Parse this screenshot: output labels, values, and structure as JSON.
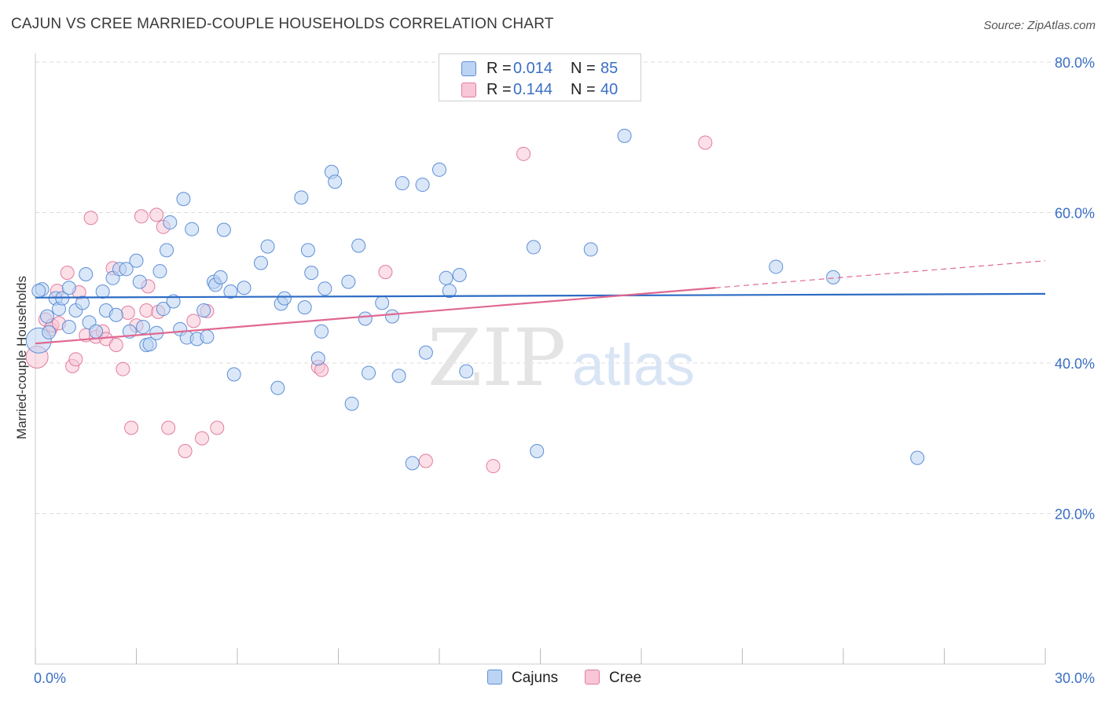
{
  "title": "CAJUN VS CREE MARRIED-COUPLE HOUSEHOLDS CORRELATION CHART",
  "source": "Source: ZipAtlas.com",
  "watermark": {
    "zip": "ZIP",
    "atlas": "atlas"
  },
  "colors": {
    "cajuns_fill": "#bcd4f3",
    "cajuns_stroke": "#5d8fd6",
    "cajuns_line": "#2c6bc4",
    "cree_fill": "#f8c6d6",
    "cree_stroke": "#e27ca0",
    "cree_line": "#e06892",
    "grid": "#dcdcdc",
    "tick_label": "#3a6fc4"
  },
  "legend": {
    "series": [
      {
        "name": "Cajuns",
        "r_label": "R =",
        "r_value": "0.014",
        "n_label": "N =",
        "n_value": "85"
      },
      {
        "name": "Cree",
        "r_label": "R =",
        "r_value": "0.144",
        "n_label": "N =",
        "n_value": "40"
      }
    ]
  },
  "chart_data": {
    "type": "scatter",
    "title": "CAJUN VS CREE MARRIED-COUPLE HOUSEHOLDS CORRELATION CHART",
    "xlabel": "",
    "ylabel": "Married-couple Households",
    "xlim": [
      0,
      30
    ],
    "ylim": [
      0,
      80
    ],
    "x_ticks_labeled": [
      "0.0%",
      "30.0%"
    ],
    "y_ticks": [
      20,
      40,
      60,
      80
    ],
    "y_tick_labels": [
      "20.0%",
      "40.0%",
      "60.0%",
      "80.0%"
    ],
    "grid": true,
    "legend_position": "top-center",
    "series": [
      {
        "name": "Cajuns",
        "R": 0.014,
        "N": 85,
        "trend": {
          "x": [
            0,
            30
          ],
          "y": [
            48.7,
            49.2
          ]
        },
        "points": [
          [
            0.1,
            43.0
          ],
          [
            0.2,
            49.8
          ],
          [
            0.35,
            46.2
          ],
          [
            0.4,
            44.1
          ],
          [
            0.6,
            48.6
          ],
          [
            0.7,
            47.2
          ],
          [
            0.8,
            48.6
          ],
          [
            1.0,
            50.0
          ],
          [
            1.0,
            44.8
          ],
          [
            1.2,
            47.0
          ],
          [
            1.4,
            48.0
          ],
          [
            1.5,
            51.8
          ],
          [
            1.6,
            45.4
          ],
          [
            1.8,
            44.2
          ],
          [
            2.0,
            49.5
          ],
          [
            2.1,
            47.0
          ],
          [
            2.3,
            51.3
          ],
          [
            2.4,
            46.4
          ],
          [
            2.5,
            52.5
          ],
          [
            2.7,
            52.5
          ],
          [
            2.8,
            44.2
          ],
          [
            3.0,
            53.6
          ],
          [
            3.1,
            50.8
          ],
          [
            3.2,
            44.8
          ],
          [
            3.3,
            42.4
          ],
          [
            3.4,
            42.5
          ],
          [
            3.6,
            44.0
          ],
          [
            3.7,
            52.2
          ],
          [
            3.8,
            47.2
          ],
          [
            3.9,
            55.0
          ],
          [
            4.0,
            58.7
          ],
          [
            4.1,
            48.2
          ],
          [
            4.3,
            44.5
          ],
          [
            4.4,
            61.8
          ],
          [
            4.5,
            43.4
          ],
          [
            4.65,
            57.8
          ],
          [
            4.8,
            43.2
          ],
          [
            5.0,
            47.0
          ],
          [
            5.1,
            43.5
          ],
          [
            5.3,
            50.8
          ],
          [
            5.35,
            50.4
          ],
          [
            5.5,
            51.4
          ],
          [
            5.6,
            57.7
          ],
          [
            5.8,
            49.5
          ],
          [
            5.9,
            38.5
          ],
          [
            6.2,
            50.0
          ],
          [
            6.7,
            53.3
          ],
          [
            6.9,
            55.5
          ],
          [
            7.2,
            36.7
          ],
          [
            7.3,
            47.9
          ],
          [
            7.4,
            48.6
          ],
          [
            7.9,
            62.0
          ],
          [
            8.0,
            47.4
          ],
          [
            8.1,
            55.0
          ],
          [
            8.2,
            52.0
          ],
          [
            8.4,
            40.6
          ],
          [
            8.5,
            44.2
          ],
          [
            8.6,
            49.9
          ],
          [
            8.8,
            65.4
          ],
          [
            8.9,
            64.1
          ],
          [
            9.3,
            50.8
          ],
          [
            9.4,
            34.6
          ],
          [
            9.6,
            55.6
          ],
          [
            9.8,
            45.9
          ],
          [
            9.9,
            38.7
          ],
          [
            10.3,
            48.0
          ],
          [
            10.6,
            46.2
          ],
          [
            10.8,
            38.3
          ],
          [
            10.9,
            63.9
          ],
          [
            11.2,
            26.7
          ],
          [
            11.5,
            63.7
          ],
          [
            11.6,
            41.4
          ],
          [
            12.0,
            65.7
          ],
          [
            12.2,
            51.3
          ],
          [
            12.3,
            49.6
          ],
          [
            12.6,
            51.7
          ],
          [
            12.8,
            38.9
          ],
          [
            14.8,
            55.4
          ],
          [
            14.9,
            28.3
          ],
          [
            16.5,
            55.1
          ],
          [
            17.5,
            70.2
          ],
          [
            22.0,
            52.8
          ],
          [
            23.7,
            51.4
          ],
          [
            26.2,
            27.4
          ],
          [
            0.1,
            49.6
          ]
        ]
      },
      {
        "name": "Cree",
        "R": 0.144,
        "N": 40,
        "trend": {
          "x": [
            0,
            20.2
          ],
          "y": [
            42.6,
            50.0
          ]
        },
        "trend_extension": {
          "x": [
            20.2,
            30
          ],
          "y": [
            50.0,
            53.6
          ]
        },
        "points": [
          [
            0.05,
            40.8
          ],
          [
            0.3,
            45.8
          ],
          [
            0.45,
            44.5
          ],
          [
            0.5,
            45.0
          ],
          [
            0.65,
            49.6
          ],
          [
            0.7,
            45.3
          ],
          [
            0.95,
            52.0
          ],
          [
            1.1,
            39.6
          ],
          [
            1.2,
            40.5
          ],
          [
            1.3,
            49.4
          ],
          [
            1.5,
            43.7
          ],
          [
            1.65,
            59.3
          ],
          [
            1.8,
            43.5
          ],
          [
            2.0,
            44.2
          ],
          [
            2.1,
            43.2
          ],
          [
            2.3,
            52.6
          ],
          [
            2.4,
            42.4
          ],
          [
            2.6,
            39.2
          ],
          [
            2.75,
            46.7
          ],
          [
            2.85,
            31.4
          ],
          [
            3.0,
            45.0
          ],
          [
            3.15,
            59.5
          ],
          [
            3.3,
            47.0
          ],
          [
            3.35,
            50.2
          ],
          [
            3.6,
            59.7
          ],
          [
            3.65,
            46.8
          ],
          [
            3.8,
            58.1
          ],
          [
            3.95,
            31.4
          ],
          [
            4.45,
            28.3
          ],
          [
            4.7,
            45.6
          ],
          [
            4.95,
            30.0
          ],
          [
            5.1,
            46.9
          ],
          [
            5.4,
            31.4
          ],
          [
            8.4,
            39.5
          ],
          [
            8.5,
            39.1
          ],
          [
            10.4,
            52.1
          ],
          [
            11.6,
            27.0
          ],
          [
            13.6,
            26.3
          ],
          [
            14.5,
            67.8
          ],
          [
            19.9,
            69.3
          ]
        ]
      }
    ]
  }
}
